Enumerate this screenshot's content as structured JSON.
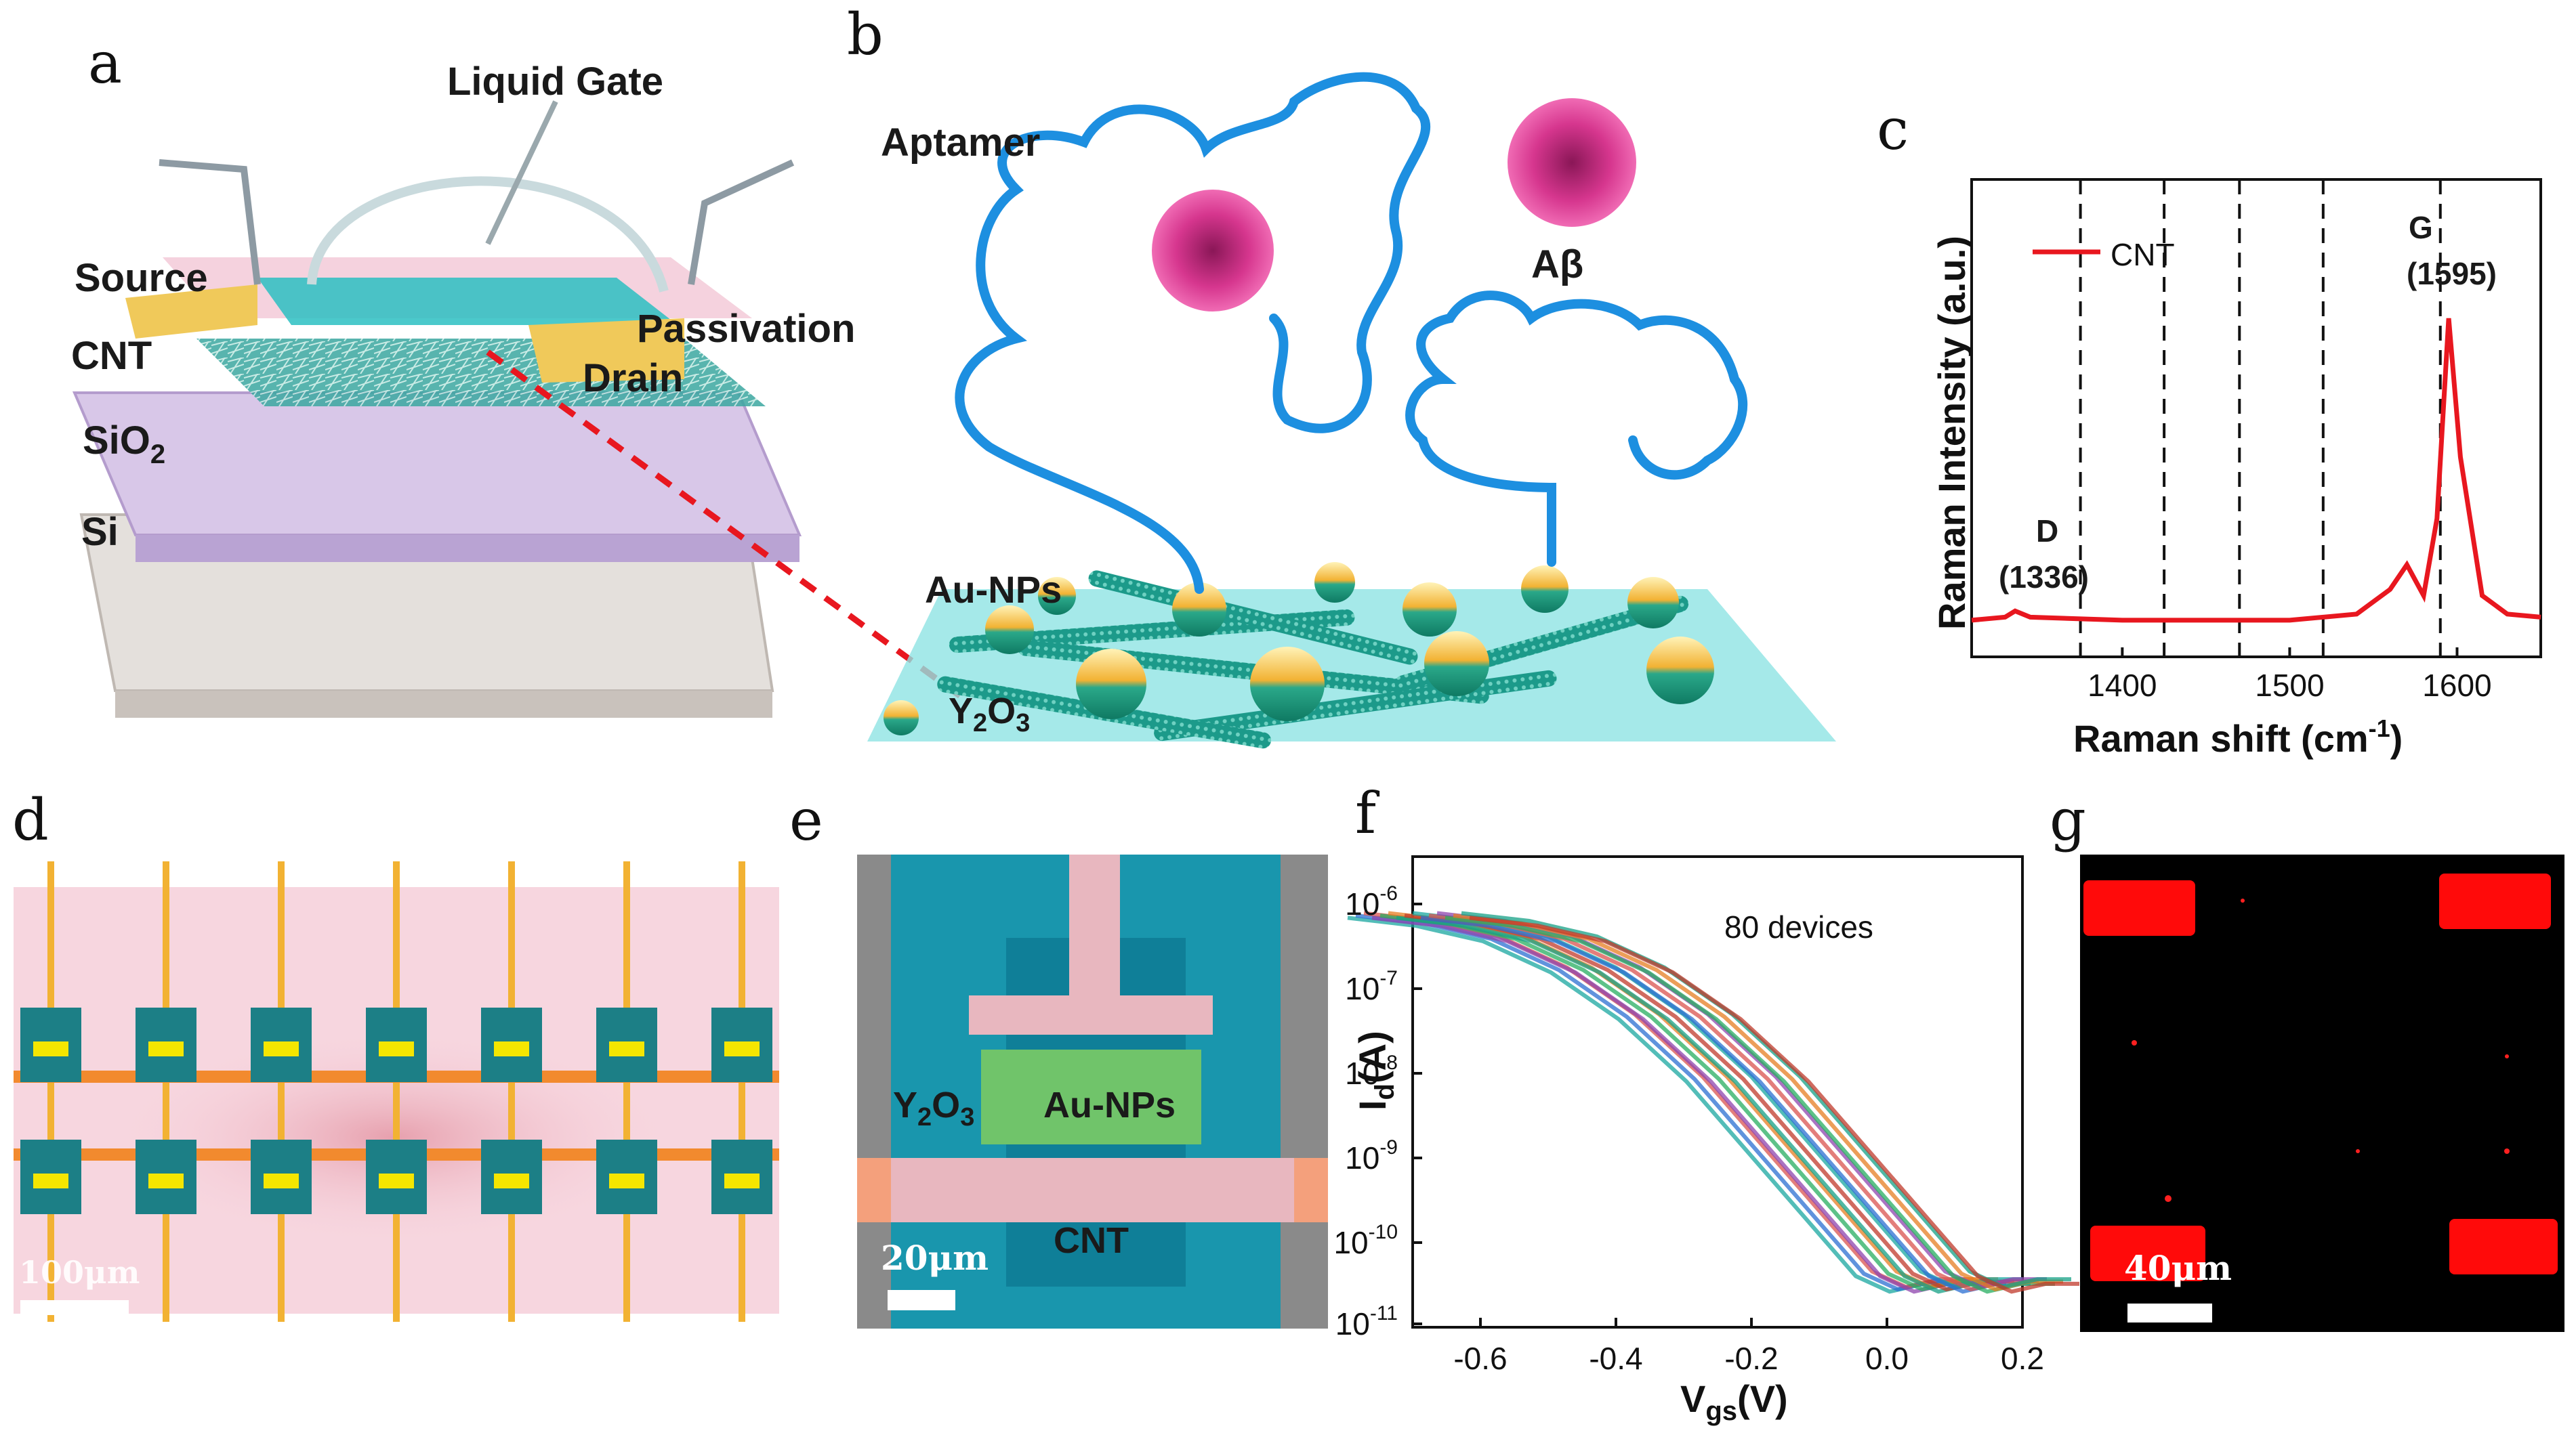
{
  "panel_labels": {
    "a": "a",
    "b": "b",
    "c": "c",
    "d": "d",
    "e": "e",
    "f": "f",
    "g": "g"
  },
  "panel_a": {
    "liquid_gate": "Liquid Gate",
    "source": "Source",
    "passivation": "Passivation",
    "cnt": "CNT",
    "drain": "Drain",
    "sio2": "SiO",
    "sio2_sub": "2",
    "si": "Si"
  },
  "panel_b": {
    "aptamer": "Aptamer",
    "abeta": "Aβ",
    "au_nps": "Au-NPs",
    "y2o3_y": "Y",
    "y2o3_2": "2",
    "y2o3_o": "O",
    "y2o3_3": "3"
  },
  "panel_c": {
    "legend": "CNT",
    "ylabel": "Raman Intensity (a.u.)",
    "xlabel": "Raman shift (cm",
    "xlabel_sup": "-1",
    "xlabel_end": ")",
    "peak_d_name": "D",
    "peak_d_value": "(1336)",
    "peak_g_name": "G",
    "peak_g_value": "(1595)",
    "xticks": [
      "1400",
      "1500",
      "1600"
    ]
  },
  "panel_d": {
    "scale": "100μm"
  },
  "panel_e": {
    "y2o3_y": "Y",
    "y2o3_2": "2",
    "y2o3_o": "O",
    "y2o3_3": "3",
    "au_nps": "Au-NPs",
    "cnt": "CNT",
    "scale": "20μm"
  },
  "panel_f": {
    "annotation": "80 devices",
    "ylabel_main": "I",
    "ylabel_sub": "d",
    "ylabel_end": "(A)",
    "xlabel_main": "V",
    "xlabel_sub": "gs",
    "xlabel_end": "(V)",
    "xticks": [
      "-0.6",
      "-0.4",
      "-0.2",
      "0.0",
      "0.2"
    ],
    "ytick_base": "10",
    "ytick_exps": [
      "-6",
      "-7",
      "-8",
      "-9",
      "-10",
      "-11"
    ]
  },
  "panel_g": {
    "scale": "40μm"
  },
  "colors": {
    "raman_line": "#e8171f",
    "transfer_curve_a": "#1aa7a0",
    "transfer_curve_b": "#d9534f",
    "cnt_layer": "#29b3b8",
    "gold": "#f2b233",
    "pink_bg": "#f7d6df",
    "fluor_red": "#ff0a0a"
  },
  "chart_data": [
    {
      "type": "line",
      "panel": "c",
      "xlabel": "Raman shift (cm-1)",
      "ylabel": "Raman Intensity (a.u.)",
      "xlim": [
        1310,
        1650
      ],
      "series": [
        {
          "name": "CNT",
          "x": [
            1310,
            1330,
            1336,
            1345,
            1400,
            1500,
            1540,
            1560,
            1570,
            1580,
            1588,
            1595,
            1602,
            1615,
            1630,
            1650
          ],
          "y": [
            0.02,
            0.03,
            0.05,
            0.03,
            0.02,
            0.02,
            0.04,
            0.12,
            0.2,
            0.1,
            0.35,
            1.0,
            0.55,
            0.1,
            0.04,
            0.03
          ]
        }
      ],
      "dashed_lines_x": [
        1375,
        1425,
        1470,
        1520,
        1590
      ],
      "annotations": [
        "D (1336)",
        "G (1595)"
      ]
    },
    {
      "type": "line",
      "panel": "f",
      "xlabel": "Vgs(V)",
      "ylabel": "Id(A)",
      "xlim": [
        -0.7,
        0.2
      ],
      "ylim_log10": [
        -11,
        -6
      ],
      "annotation": "80 devices",
      "series": [
        {
          "x": [
            -0.7,
            -0.6,
            -0.5,
            -0.4,
            -0.3,
            -0.2,
            -0.1,
            0.0,
            0.05,
            0.1,
            0.15,
            0.2
          ],
          "log10_y": [
            -5.8,
            -5.9,
            -6.1,
            -6.5,
            -7.1,
            -7.9,
            -8.9,
            -9.9,
            -10.4,
            -10.6,
            -10.5,
            -10.5
          ]
        }
      ]
    }
  ]
}
